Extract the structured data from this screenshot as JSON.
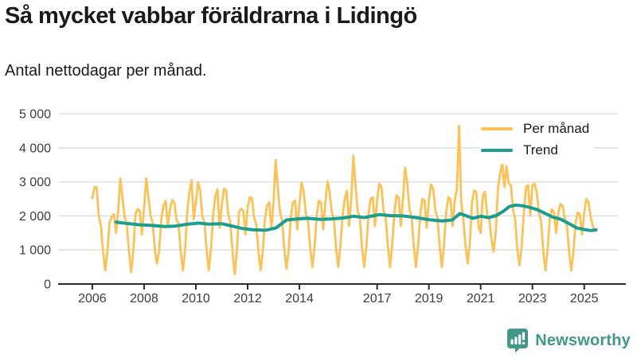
{
  "header": {
    "title": "Så mycket vabbar föräldrarna i Lidingö",
    "subtitle": "Antal nettodagar per månad."
  },
  "chart_data": {
    "type": "line",
    "title": "Så mycket vabbar föräldrarna i Lidingö",
    "subtitle": "Antal nettodagar per månad.",
    "ylabel": "Antal nettodagar per månad",
    "ylim": [
      0,
      5000
    ],
    "xlim": [
      2004.68,
      2026.3
    ],
    "grid": "horizontal",
    "y_ticks": [
      0,
      1000,
      2000,
      3000,
      4000,
      5000
    ],
    "y_tick_labels": [
      "0",
      "1 000",
      "2 000",
      "3 000",
      "4 000",
      "5 000"
    ],
    "x_ticks": [
      2006,
      2008,
      2010,
      2012,
      2014,
      2017,
      2019,
      2021,
      2023,
      2025
    ],
    "legend": {
      "position": "top-right",
      "entries": [
        {
          "label": "Per månad",
          "color": "#fbc257"
        },
        {
          "label": "Trend",
          "color": "#1a9e8f"
        }
      ]
    },
    "series": [
      {
        "name": "Per månad",
        "color": "#fbc257",
        "sampling": "monthly",
        "start_year": 2006,
        "start_month": 1,
        "values": [
          2520,
          2850,
          2840,
          2000,
          1700,
          950,
          400,
          950,
          1810,
          1970,
          2050,
          1500,
          2150,
          3100,
          2520,
          1950,
          1750,
          950,
          350,
          950,
          2040,
          2200,
          2150,
          1450,
          2250,
          3100,
          2550,
          2000,
          1800,
          1000,
          600,
          1000,
          1900,
          2300,
          2440,
          1700,
          2200,
          2470,
          2400,
          1900,
          1750,
          950,
          400,
          1000,
          2100,
          2700,
          3050,
          1900,
          2400,
          3000,
          2750,
          2000,
          1800,
          1000,
          400,
          1050,
          2000,
          2600,
          2780,
          1650,
          2300,
          2800,
          2750,
          2050,
          1800,
          950,
          280,
          950,
          2120,
          2210,
          2150,
          1450,
          2250,
          2550,
          2520,
          1950,
          1750,
          950,
          400,
          950,
          1900,
          2300,
          2400,
          1600,
          2400,
          3640,
          2800,
          2100,
          1850,
          1000,
          450,
          1000,
          1950,
          2400,
          2450,
          1600,
          2350,
          2975,
          2700,
          2050,
          1850,
          1050,
          500,
          1050,
          2000,
          2450,
          2400,
          1600,
          2400,
          3020,
          2700,
          2100,
          1900,
          1050,
          500,
          1100,
          2000,
          2500,
          2740,
          1700,
          2500,
          3770,
          2900,
          2150,
          1950,
          1100,
          500,
          1100,
          2050,
          2500,
          2550,
          1700,
          2450,
          2950,
          2850,
          2150,
          1950,
          1100,
          500,
          1150,
          2100,
          2600,
          2550,
          1700,
          2500,
          3420,
          2950,
          2200,
          1950,
          1100,
          500,
          1100,
          2050,
          2500,
          2450,
          1650,
          2450,
          2920,
          2800,
          2150,
          1950,
          1100,
          500,
          1150,
          2100,
          2550,
          2500,
          1700,
          2450,
          2820,
          4650,
          2400,
          1900,
          1100,
          600,
          1200,
          2400,
          2750,
          2700,
          1700,
          1500,
          2600,
          2710,
          2050,
          1900,
          1340,
          950,
          1500,
          2800,
          3250,
          3560,
          2840,
          3460,
          2950,
          2900,
          2200,
          1900,
          1000,
          550,
          1100,
          2100,
          2850,
          2900,
          2000,
          2900,
          2950,
          2700,
          2100,
          1850,
          1000,
          400,
          1000,
          1900,
          2200,
          2100,
          1500,
          2100,
          2350,
          2300,
          1900,
          1700,
          900,
          400,
          950,
          1800,
          2100,
          2050,
          1450,
          2100,
          2500,
          2400,
          1950,
          1700,
          1560
        ]
      },
      {
        "name": "Trend",
        "color": "#1a9e8f",
        "sampling": "anchors",
        "points": [
          [
            2006.92,
            1820
          ],
          [
            2007.3,
            1780
          ],
          [
            2007.8,
            1740
          ],
          [
            2008.3,
            1720
          ],
          [
            2008.8,
            1690
          ],
          [
            2009.2,
            1700
          ],
          [
            2009.7,
            1760
          ],
          [
            2010.1,
            1790
          ],
          [
            2010.5,
            1760
          ],
          [
            2011.0,
            1770
          ],
          [
            2011.4,
            1700
          ],
          [
            2011.8,
            1630
          ],
          [
            2012.2,
            1590
          ],
          [
            2012.7,
            1580
          ],
          [
            2013.1,
            1650
          ],
          [
            2013.5,
            1880
          ],
          [
            2013.9,
            1910
          ],
          [
            2014.3,
            1930
          ],
          [
            2014.8,
            1900
          ],
          [
            2015.2,
            1910
          ],
          [
            2015.7,
            1940
          ],
          [
            2016.1,
            1990
          ],
          [
            2016.5,
            1950
          ],
          [
            2016.9,
            2010
          ],
          [
            2017.1,
            2040
          ],
          [
            2017.5,
            2010
          ],
          [
            2018.0,
            2000
          ],
          [
            2018.5,
            1950
          ],
          [
            2019.0,
            1890
          ],
          [
            2019.5,
            1850
          ],
          [
            2019.9,
            1880
          ],
          [
            2020.2,
            2070
          ],
          [
            2020.45,
            2000
          ],
          [
            2020.7,
            1930
          ],
          [
            2021.0,
            1990
          ],
          [
            2021.3,
            1950
          ],
          [
            2021.6,
            2010
          ],
          [
            2021.9,
            2150
          ],
          [
            2022.1,
            2270
          ],
          [
            2022.35,
            2320
          ],
          [
            2022.6,
            2300
          ],
          [
            2022.9,
            2250
          ],
          [
            2023.2,
            2180
          ],
          [
            2023.5,
            2070
          ],
          [
            2023.8,
            1960
          ],
          [
            2024.1,
            1900
          ],
          [
            2024.4,
            1780
          ],
          [
            2024.7,
            1650
          ],
          [
            2025.0,
            1600
          ],
          [
            2025.25,
            1570
          ],
          [
            2025.45,
            1590
          ]
        ]
      }
    ],
    "axis_color": "#2b2b2b",
    "grid_color": "#dbdbdb",
    "tick_text_color": "#3d3d3d"
  },
  "footer": {
    "brand": "Newsworthy",
    "brand_color": "#42978a"
  }
}
